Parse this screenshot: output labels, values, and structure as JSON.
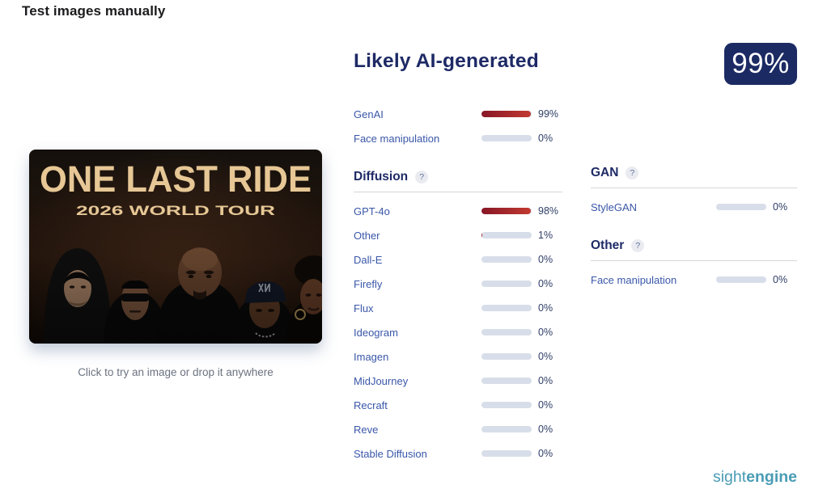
{
  "page": {
    "title": "Test images manually"
  },
  "uploader": {
    "caption": "Click to try an image or drop it anywhere",
    "poster": {
      "title": "ONE LAST RIDE",
      "subtitle": "2026 WORLD TOUR"
    }
  },
  "result": {
    "verdict": "Likely AI-generated",
    "overall_score": "99%",
    "summary_rows": [
      {
        "label": "GenAI",
        "value": 99
      },
      {
        "label": "Face manipulation",
        "value": 0
      }
    ],
    "sections": [
      {
        "title": "Diffusion",
        "help_icon": "?",
        "rows": [
          {
            "label": "GPT-4o",
            "value": 98
          },
          {
            "label": "Other",
            "value": 1
          },
          {
            "label": "Dall-E",
            "value": 0
          },
          {
            "label": "Firefly",
            "value": 0
          },
          {
            "label": "Flux",
            "value": 0
          },
          {
            "label": "Ideogram",
            "value": 0
          },
          {
            "label": "Imagen",
            "value": 0
          },
          {
            "label": "MidJourney",
            "value": 0
          },
          {
            "label": "Recraft",
            "value": 0
          },
          {
            "label": "Reve",
            "value": 0
          },
          {
            "label": "Stable Diffusion",
            "value": 0
          }
        ]
      },
      {
        "title": "GAN",
        "help_icon": "?",
        "rows": [
          {
            "label": "StyleGAN",
            "value": 0
          }
        ]
      },
      {
        "title": "Other",
        "help_icon": "?",
        "rows": [
          {
            "label": "Face manipulation",
            "value": 0
          }
        ]
      }
    ]
  },
  "footer": {
    "logo_light": "sight",
    "logo_bold": "engine"
  },
  "colors": {
    "accent_navy": "#1b2a63",
    "label_blue": "#3a57a9",
    "bar_red_start": "#871726",
    "bar_red_end": "#c23a31",
    "bar_track": "#d8dee9",
    "logo_teal": "#4a9cb5",
    "poster_gold": "#e6c795"
  }
}
